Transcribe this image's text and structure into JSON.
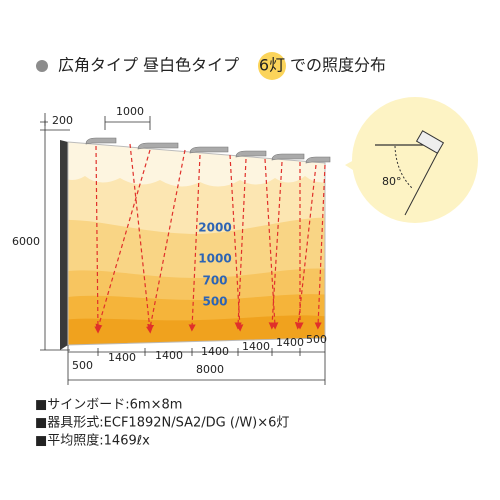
{
  "title": {
    "before": "広角タイプ 昼白色タイプ",
    "highlight": "6灯",
    "after": "での照度分布"
  },
  "dimensions": {
    "top_offset": "200",
    "top_spacing": "1000",
    "height": "6000",
    "bottom_segments": [
      "500",
      "1400",
      "1400",
      "1400",
      "1400",
      "1400",
      "500"
    ],
    "width": "8000"
  },
  "contours": [
    "2000",
    "1000",
    "700",
    "500"
  ],
  "callout": {
    "angle": "80°"
  },
  "specs": [
    "■サインボード:6m×8m",
    "■器具形式:ECF1892N/SA2/DG (/W)×6灯",
    "■平均照度:1469ℓx"
  ]
}
